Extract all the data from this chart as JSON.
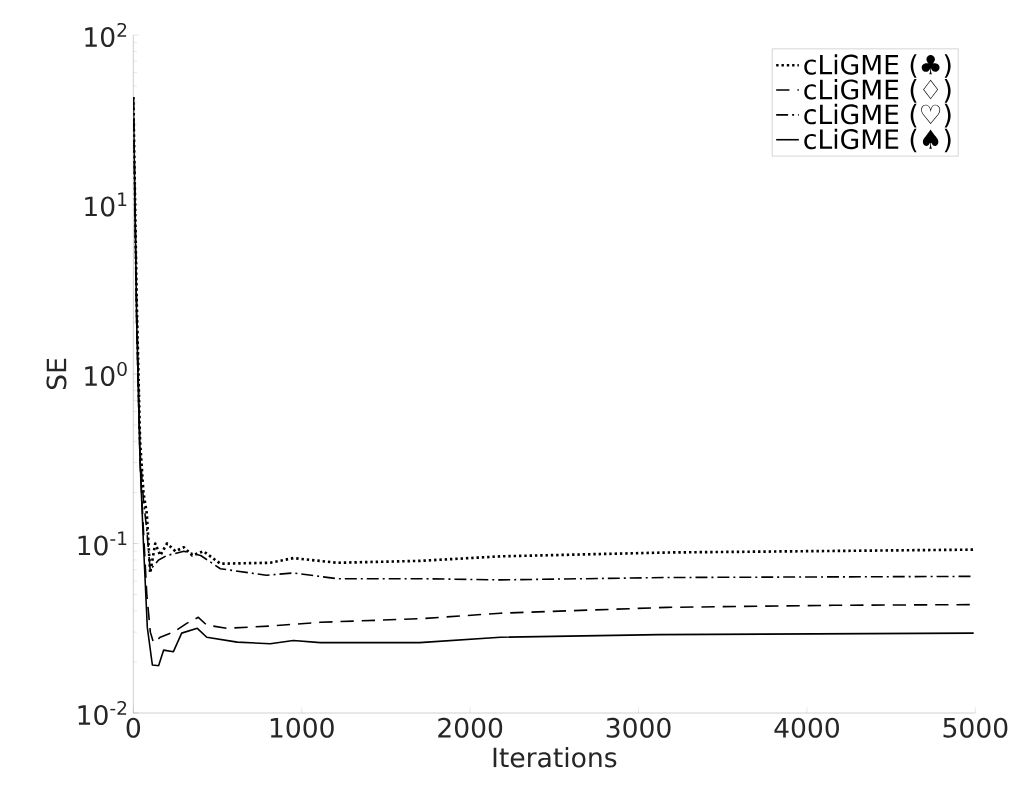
{
  "chart_data": {
    "type": "line",
    "xlabel": "Iterations",
    "ylabel": "SE",
    "log": "y",
    "xlim": [
      0,
      5000
    ],
    "ylim": [
      0.01,
      100
    ],
    "xticks": [
      0,
      1000,
      2000,
      3000,
      4000,
      5000
    ],
    "yticks": [
      {
        "value": 0.01,
        "label": "10$^{-2}$"
      },
      {
        "value": 0.1,
        "label": "10$^{-1}$"
      },
      {
        "value": 1,
        "label": "10$^{0}$"
      },
      {
        "value": 10,
        "label": "10$^{1}$"
      },
      {
        "value": 100,
        "label": "10$^{2}$"
      }
    ],
    "legend": "top right",
    "grid": false,
    "series": [
      {
        "name": "cLiGME (♣)",
        "color": "#000000",
        "line_style": "dotted",
        "x": [
          0,
          20,
          40,
          60,
          80,
          100,
          130,
          160,
          200,
          250,
          300,
          350,
          416,
          517,
          813,
          950,
          1211,
          1704,
          2180,
          3170,
          4990
        ],
        "values": [
          43,
          2.7,
          0.4,
          0.2,
          0.15,
          0.067,
          0.1,
          0.085,
          0.1,
          0.09,
          0.095,
          0.085,
          0.09,
          0.076,
          0.077,
          0.082,
          0.077,
          0.079,
          0.084,
          0.0885,
          0.092
        ]
      },
      {
        "name": "cLiGME (♢)",
        "color": "#000000",
        "line_style": "dashed",
        "x": [
          0,
          20,
          40,
          60,
          80,
          101,
          120,
          160,
          238,
          317,
          386,
          436,
          556,
          813,
          1110,
          1704,
          2180,
          3170,
          4157,
          4990
        ],
        "values": [
          43,
          2.0,
          0.3,
          0.12,
          0.05,
          0.03,
          0.026,
          0.028,
          0.03,
          0.0338,
          0.0367,
          0.033,
          0.0316,
          0.0326,
          0.0343,
          0.036,
          0.0388,
          0.042,
          0.0432,
          0.0436
        ]
      },
      {
        "name": "cLiGME (♡)",
        "color": "#000000",
        "line_style": "dashdot",
        "x": [
          0,
          20,
          40,
          60,
          80,
          100,
          150,
          200,
          300,
          400,
          517,
          790,
          950,
          1211,
          1700,
          2180,
          3170,
          4990
        ],
        "values": [
          43,
          2.5,
          0.35,
          0.18,
          0.12,
          0.07,
          0.08,
          0.085,
          0.09,
          0.085,
          0.071,
          0.065,
          0.067,
          0.062,
          0.062,
          0.061,
          0.063,
          0.064
        ]
      },
      {
        "name": "cLiGME (♠)",
        "color": "#000000",
        "line_style": "solid",
        "x": [
          0,
          20,
          40,
          60,
          83,
          113,
          150,
          180,
          238,
          287,
          380,
          436,
          617,
          813,
          950,
          1110,
          1700,
          2180,
          3120,
          4990
        ],
        "values": [
          43,
          2.0,
          0.31,
          0.1,
          0.032,
          0.0192,
          0.019,
          0.0235,
          0.023,
          0.0296,
          0.0316,
          0.028,
          0.0262,
          0.0256,
          0.0268,
          0.026,
          0.026,
          0.028,
          0.029,
          0.0296
        ]
      }
    ]
  }
}
